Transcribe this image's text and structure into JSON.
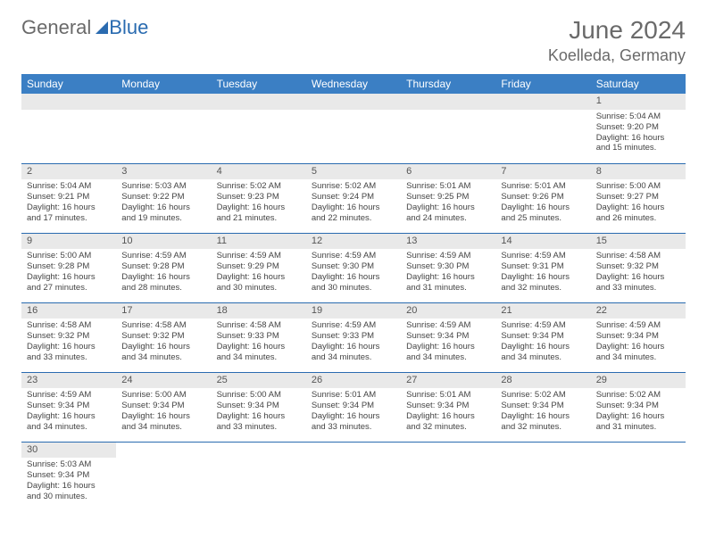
{
  "brand": {
    "general": "General",
    "blue": "Blue"
  },
  "title": {
    "month": "June 2024",
    "location": "Koelleda, Germany"
  },
  "weekdays": [
    "Sunday",
    "Monday",
    "Tuesday",
    "Wednesday",
    "Thursday",
    "Friday",
    "Saturday"
  ],
  "colors": {
    "header_bg": "#3b7fc4",
    "header_text": "#ffffff",
    "daynum_bg": "#e9e9e9",
    "row_border": "#2a6bb0",
    "brand_gray": "#6a6a6a",
    "brand_blue": "#2a6bb0",
    "sail_fill": "#2a6bb0"
  },
  "layout": {
    "cols": 7,
    "rows": 6,
    "first_weekday_index": 6,
    "days_in_month": 30
  },
  "days": [
    {
      "n": 1,
      "sunrise": "5:04 AM",
      "sunset": "9:20 PM",
      "daylight": "16 hours and 15 minutes."
    },
    {
      "n": 2,
      "sunrise": "5:04 AM",
      "sunset": "9:21 PM",
      "daylight": "16 hours and 17 minutes."
    },
    {
      "n": 3,
      "sunrise": "5:03 AM",
      "sunset": "9:22 PM",
      "daylight": "16 hours and 19 minutes."
    },
    {
      "n": 4,
      "sunrise": "5:02 AM",
      "sunset": "9:23 PM",
      "daylight": "16 hours and 21 minutes."
    },
    {
      "n": 5,
      "sunrise": "5:02 AM",
      "sunset": "9:24 PM",
      "daylight": "16 hours and 22 minutes."
    },
    {
      "n": 6,
      "sunrise": "5:01 AM",
      "sunset": "9:25 PM",
      "daylight": "16 hours and 24 minutes."
    },
    {
      "n": 7,
      "sunrise": "5:01 AM",
      "sunset": "9:26 PM",
      "daylight": "16 hours and 25 minutes."
    },
    {
      "n": 8,
      "sunrise": "5:00 AM",
      "sunset": "9:27 PM",
      "daylight": "16 hours and 26 minutes."
    },
    {
      "n": 9,
      "sunrise": "5:00 AM",
      "sunset": "9:28 PM",
      "daylight": "16 hours and 27 minutes."
    },
    {
      "n": 10,
      "sunrise": "4:59 AM",
      "sunset": "9:28 PM",
      "daylight": "16 hours and 28 minutes."
    },
    {
      "n": 11,
      "sunrise": "4:59 AM",
      "sunset": "9:29 PM",
      "daylight": "16 hours and 30 minutes."
    },
    {
      "n": 12,
      "sunrise": "4:59 AM",
      "sunset": "9:30 PM",
      "daylight": "16 hours and 30 minutes."
    },
    {
      "n": 13,
      "sunrise": "4:59 AM",
      "sunset": "9:30 PM",
      "daylight": "16 hours and 31 minutes."
    },
    {
      "n": 14,
      "sunrise": "4:59 AM",
      "sunset": "9:31 PM",
      "daylight": "16 hours and 32 minutes."
    },
    {
      "n": 15,
      "sunrise": "4:58 AM",
      "sunset": "9:32 PM",
      "daylight": "16 hours and 33 minutes."
    },
    {
      "n": 16,
      "sunrise": "4:58 AM",
      "sunset": "9:32 PM",
      "daylight": "16 hours and 33 minutes."
    },
    {
      "n": 17,
      "sunrise": "4:58 AM",
      "sunset": "9:32 PM",
      "daylight": "16 hours and 34 minutes."
    },
    {
      "n": 18,
      "sunrise": "4:58 AM",
      "sunset": "9:33 PM",
      "daylight": "16 hours and 34 minutes."
    },
    {
      "n": 19,
      "sunrise": "4:59 AM",
      "sunset": "9:33 PM",
      "daylight": "16 hours and 34 minutes."
    },
    {
      "n": 20,
      "sunrise": "4:59 AM",
      "sunset": "9:34 PM",
      "daylight": "16 hours and 34 minutes."
    },
    {
      "n": 21,
      "sunrise": "4:59 AM",
      "sunset": "9:34 PM",
      "daylight": "16 hours and 34 minutes."
    },
    {
      "n": 22,
      "sunrise": "4:59 AM",
      "sunset": "9:34 PM",
      "daylight": "16 hours and 34 minutes."
    },
    {
      "n": 23,
      "sunrise": "4:59 AM",
      "sunset": "9:34 PM",
      "daylight": "16 hours and 34 minutes."
    },
    {
      "n": 24,
      "sunrise": "5:00 AM",
      "sunset": "9:34 PM",
      "daylight": "16 hours and 34 minutes."
    },
    {
      "n": 25,
      "sunrise": "5:00 AM",
      "sunset": "9:34 PM",
      "daylight": "16 hours and 33 minutes."
    },
    {
      "n": 26,
      "sunrise": "5:01 AM",
      "sunset": "9:34 PM",
      "daylight": "16 hours and 33 minutes."
    },
    {
      "n": 27,
      "sunrise": "5:01 AM",
      "sunset": "9:34 PM",
      "daylight": "16 hours and 32 minutes."
    },
    {
      "n": 28,
      "sunrise": "5:02 AM",
      "sunset": "9:34 PM",
      "daylight": "16 hours and 32 minutes."
    },
    {
      "n": 29,
      "sunrise": "5:02 AM",
      "sunset": "9:34 PM",
      "daylight": "16 hours and 31 minutes."
    },
    {
      "n": 30,
      "sunrise": "5:03 AM",
      "sunset": "9:34 PM",
      "daylight": "16 hours and 30 minutes."
    }
  ],
  "labels": {
    "sunrise": "Sunrise:",
    "sunset": "Sunset:",
    "daylight": "Daylight:"
  }
}
